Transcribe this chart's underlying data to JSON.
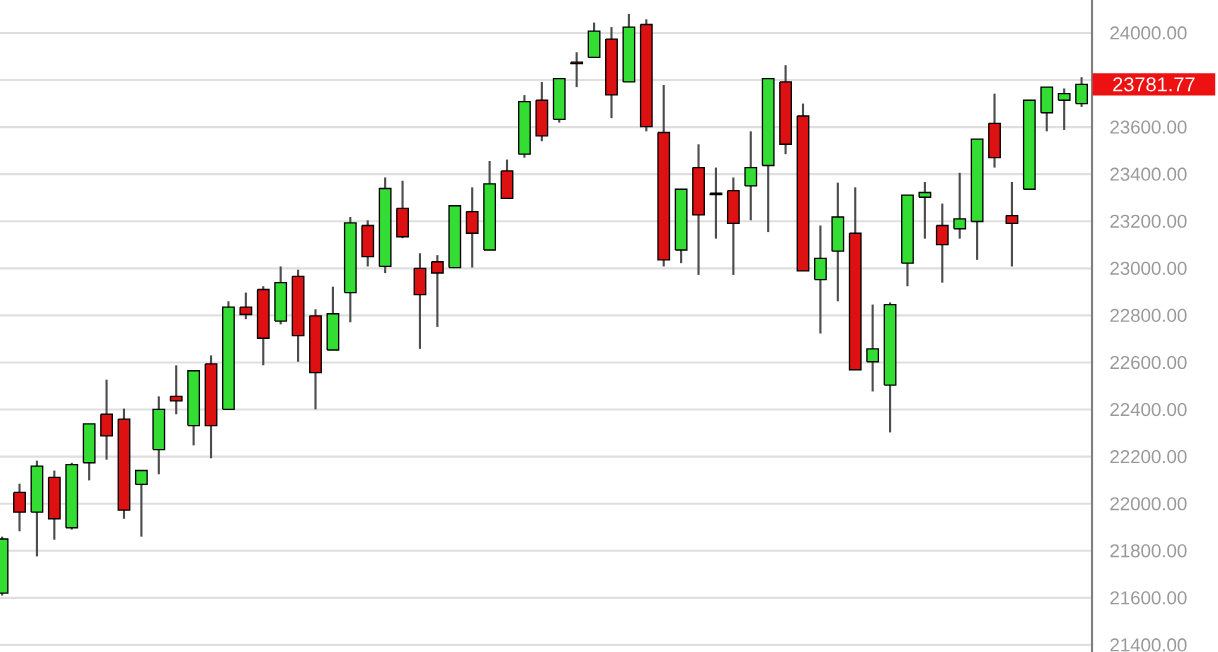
{
  "chart_data": {
    "type": "candlestick",
    "categories": [
      null,
      null,
      null,
      null,
      null,
      null,
      null,
      null,
      null,
      null,
      null,
      null,
      null,
      null,
      null,
      null,
      null,
      null,
      null,
      null,
      null,
      null,
      null,
      null,
      null,
      null,
      null,
      null,
      null,
      null,
      null,
      null,
      null,
      null,
      null,
      null,
      null,
      null,
      null,
      null,
      null,
      null,
      null,
      null,
      null,
      null,
      null,
      null,
      null,
      null,
      null,
      null,
      null,
      null,
      null,
      null,
      null,
      null,
      null,
      null,
      null,
      null,
      null
    ],
    "ohlc": [
      [
        21620,
        21860,
        21610,
        21850
      ],
      [
        22048,
        22085,
        21883,
        21964
      ],
      [
        21964,
        22183,
        21776,
        22160
      ],
      [
        22112,
        22141,
        21847,
        21936
      ],
      [
        21898,
        22174,
        21890,
        22166
      ],
      [
        22174,
        22339,
        22099,
        22339
      ],
      [
        22380,
        22527,
        22187,
        22288
      ],
      [
        22359,
        22404,
        21936,
        21973
      ],
      [
        22082,
        22141,
        21860,
        22141
      ],
      [
        22230,
        22456,
        22125,
        22401
      ],
      [
        22456,
        22588,
        22380,
        22437
      ],
      [
        22332,
        22565,
        22248,
        22565
      ],
      [
        22594,
        22630,
        22193,
        22332
      ],
      [
        22401,
        22860,
        22401,
        22835
      ],
      [
        22835,
        22897,
        22784,
        22804
      ],
      [
        22910,
        22924,
        22588,
        22703
      ],
      [
        22776,
        23008,
        22762,
        22939
      ],
      [
        22966,
        22994,
        22603,
        22714
      ],
      [
        22798,
        22826,
        22401,
        22557
      ],
      [
        22653,
        22922,
        22653,
        22807
      ],
      [
        22897,
        23218,
        22771,
        23193
      ],
      [
        23182,
        23204,
        23008,
        23050
      ],
      [
        23008,
        23386,
        22980,
        23339
      ],
      [
        23255,
        23372,
        23128,
        23134
      ],
      [
        23000,
        23064,
        22658,
        22888
      ],
      [
        23028,
        23056,
        22751,
        22980
      ],
      [
        23003,
        23266,
        23003,
        23266
      ],
      [
        23241,
        23344,
        23003,
        23149
      ],
      [
        23078,
        23456,
        23078,
        23359
      ],
      [
        23414,
        23462,
        23297,
        23297
      ],
      [
        23485,
        23736,
        23470,
        23708
      ],
      [
        23714,
        23792,
        23540,
        23563
      ],
      [
        23633,
        23806,
        23619,
        23806
      ],
      [
        23876,
        23918,
        23770,
        23870
      ],
      [
        23896,
        24044,
        23896,
        24008
      ],
      [
        23974,
        24025,
        23638,
        23737
      ],
      [
        23792,
        24081,
        23792,
        24025
      ],
      [
        24036,
        24058,
        23582,
        23602
      ],
      [
        23577,
        23779,
        23008,
        23036
      ],
      [
        23078,
        23336,
        23022,
        23336
      ],
      [
        23428,
        23527,
        22972,
        23227
      ],
      [
        23319,
        23428,
        23126,
        23313
      ],
      [
        23330,
        23386,
        22972,
        23191
      ],
      [
        23350,
        23582,
        23204,
        23428
      ],
      [
        23437,
        23806,
        23154,
        23806
      ],
      [
        23792,
        23863,
        23485,
        23527
      ],
      [
        23647,
        23700,
        22989,
        22989
      ],
      [
        22952,
        23182,
        22723,
        23042
      ],
      [
        23073,
        23364,
        22860,
        23218
      ],
      [
        23149,
        23344,
        22569,
        22569
      ],
      [
        22603,
        22846,
        22477,
        22658
      ],
      [
        22504,
        22855,
        22303,
        22846
      ],
      [
        23022,
        23311,
        22924,
        23311
      ],
      [
        23302,
        23367,
        23126,
        23322
      ],
      [
        23182,
        23275,
        22939,
        23101
      ],
      [
        23168,
        23406,
        23126,
        23210
      ],
      [
        23199,
        23549,
        23036,
        23549
      ],
      [
        23616,
        23742,
        23428,
        23470
      ],
      [
        23224,
        23367,
        23008,
        23191
      ],
      [
        23336,
        23714,
        23336,
        23714
      ],
      [
        23661,
        23770,
        23582,
        23770
      ],
      [
        23714,
        23764,
        23588,
        23742
      ],
      [
        23700,
        23812,
        23686,
        23781.77
      ]
    ],
    "colors": [
      "#33dd33",
      "#dd1111",
      "#33dd33",
      "#dd1111",
      "#33dd33",
      "#33dd33",
      "#dd1111",
      "#dd1111",
      "#33dd33",
      "#33dd33",
      "#dd1111",
      "#33dd33",
      "#dd1111",
      "#33dd33",
      "#dd1111",
      "#dd1111",
      "#33dd33",
      "#dd1111",
      "#dd1111",
      "#33dd33",
      "#33dd33",
      "#dd1111",
      "#33dd33",
      "#dd1111",
      "#dd1111",
      "#dd1111",
      "#33dd33",
      "#dd1111",
      "#33dd33",
      "#dd1111",
      "#33dd33",
      "#dd1111",
      "#33dd33",
      "#dd1111",
      "#33dd33",
      "#dd1111",
      "#33dd33",
      "#dd1111",
      "#dd1111",
      "#33dd33",
      "#dd1111",
      "#dd1111",
      "#dd1111",
      "#33dd33",
      "#33dd33",
      "#dd1111",
      "#dd1111",
      "#33dd33",
      "#33dd33",
      "#dd1111",
      "#33dd33",
      "#33dd33",
      "#33dd33",
      "#33dd33",
      "#dd1111",
      "#33dd33",
      "#33dd33",
      "#dd1111",
      "#dd1111",
      "#33dd33",
      "#33dd33",
      "#33dd33",
      "#33dd33"
    ],
    "ylim": [
      21370,
      24140
    ],
    "yticks": [
      {
        "value": 21400,
        "label": "21400.00"
      },
      {
        "value": 21600,
        "label": "21600.00"
      },
      {
        "value": 21800,
        "label": "21800.00"
      },
      {
        "value": 22000,
        "label": "22000.00"
      },
      {
        "value": 22200,
        "label": "22200.00"
      },
      {
        "value": 22400,
        "label": "22400.00"
      },
      {
        "value": 22600,
        "label": "22600.00"
      },
      {
        "value": 22800,
        "label": "22800.00"
      },
      {
        "value": 23000,
        "label": "23000.00"
      },
      {
        "value": 23200,
        "label": "23200.00"
      },
      {
        "value": 23400,
        "label": "23400.00"
      },
      {
        "value": 23600,
        "label": "23600.00"
      },
      {
        "value": 23800,
        "label": null
      },
      {
        "value": 24000,
        "label": "24000.00"
      }
    ],
    "tick_labels": "y",
    "grid": "y",
    "annotations": [
      "23781.77"
    ]
  }
}
